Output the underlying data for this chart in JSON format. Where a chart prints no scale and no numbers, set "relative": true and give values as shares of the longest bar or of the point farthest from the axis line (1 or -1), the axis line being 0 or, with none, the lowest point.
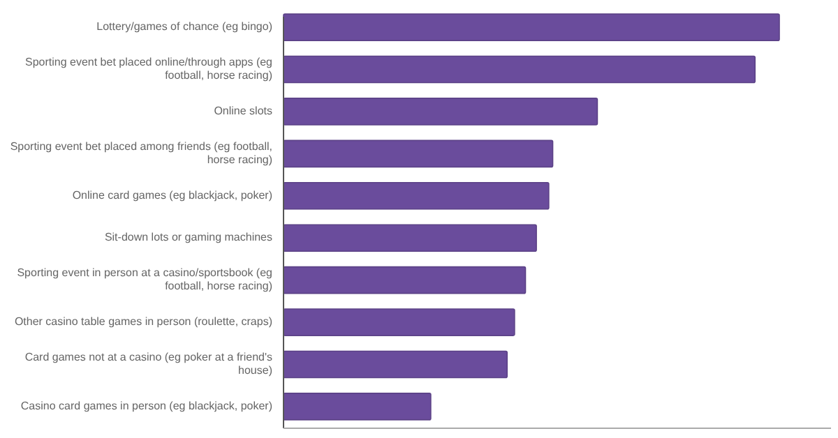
{
  "chart_data": {
    "type": "bar",
    "orientation": "horizontal",
    "relative": true,
    "color": "#6a4c9c",
    "categories": [
      "Lottery/games of chance (eg bingo)",
      "Sporting event bet placed online/through apps (eg football, horse racing)",
      "Online slots",
      "Sporting event bet placed among friends (eg football, horse racing)",
      "Online card games (eg blackjack, poker)",
      "Sit-down lots or gaming machines",
      "Sporting event in person at a casino/sportsbook (eg football, horse racing)",
      "Other casino table games in person (roulette, craps)",
      "Card games not at a casino (eg poker at a friend's house)",
      "Casino card games in person (eg blackjack, poker)"
    ],
    "values": [
      1,
      0.951,
      0.633,
      0.543,
      0.535,
      0.51,
      0.488,
      0.466,
      0.451,
      0.297
    ]
  }
}
